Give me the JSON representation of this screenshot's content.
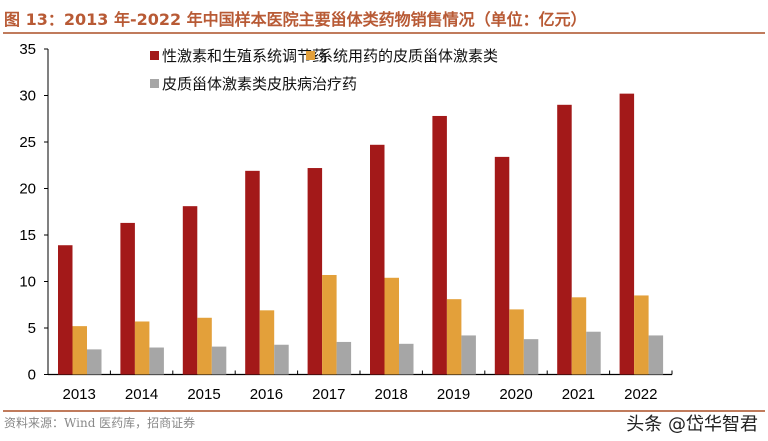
{
  "title": "图 13：2013 年-2022 年中国样本医院主要甾体类药物销售情况（单位：亿元）",
  "source": "资料来源：Wind 医药库，招商证券",
  "watermark": "头条 @岱华智君",
  "chart_data": {
    "type": "bar",
    "title": "图 13：2013 年-2022 年中国样本医院主要甾体类药物销售情况（单位：亿元）",
    "xlabel": "",
    "ylabel": "",
    "ylim": [
      0,
      35
    ],
    "yticks": [
      0,
      5,
      10,
      15,
      20,
      25,
      30,
      35
    ],
    "grid": false,
    "legend_placement": "top-center",
    "categories": [
      "2013",
      "2014",
      "2015",
      "2016",
      "2017",
      "2018",
      "2019",
      "2020",
      "2021",
      "2022"
    ],
    "series": [
      {
        "name": "性激素和生殖系统调节药",
        "color": "#a31919",
        "values": [
          13.9,
          16.3,
          18.1,
          21.9,
          22.2,
          24.7,
          27.8,
          23.4,
          29.0,
          30.2
        ]
      },
      {
        "name": "系统用药的皮质甾体激素类",
        "color": "#e3a03a",
        "values": [
          5.2,
          5.7,
          6.1,
          6.9,
          10.7,
          10.4,
          8.1,
          7.0,
          8.3,
          8.5
        ]
      },
      {
        "name": "皮质甾体激素类皮肤病治疗药",
        "color": "#a6a6a6",
        "values": [
          2.7,
          2.9,
          3.0,
          3.2,
          3.5,
          3.3,
          4.2,
          3.8,
          4.6,
          4.2
        ]
      }
    ]
  }
}
